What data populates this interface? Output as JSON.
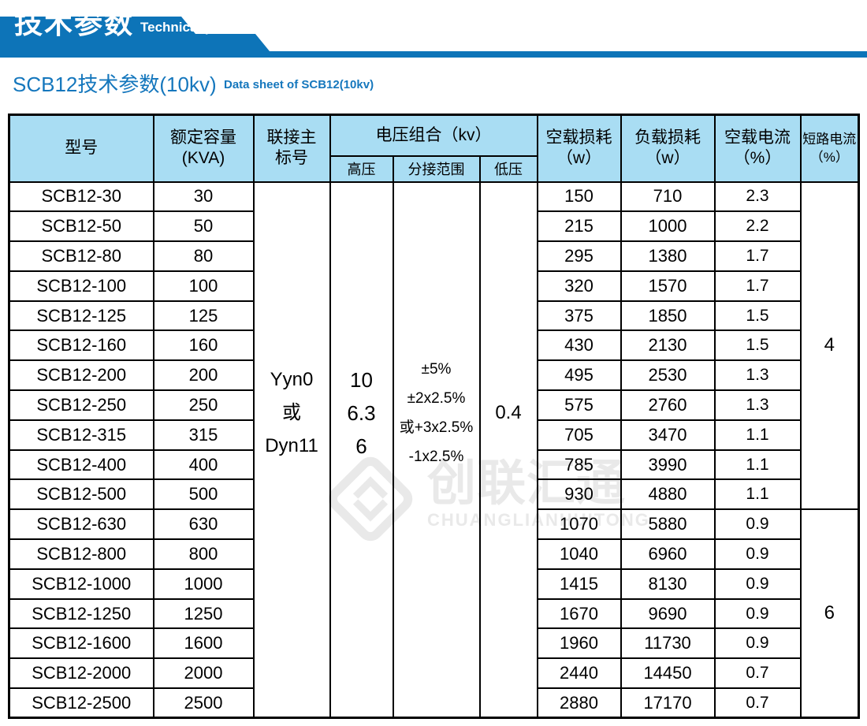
{
  "banner": {
    "title_cn": "技术参数",
    "title_en": "Technical parameter"
  },
  "section": {
    "title_cn": "SCB12技术参数(10kv)",
    "title_en": "Data sheet of SCB12(10kv)"
  },
  "watermark": {
    "logo_icon": "diamond-logo-icon",
    "text_cn": "创联汇通",
    "text_en": "CHUANGLIANHUITONG"
  },
  "colors": {
    "accent_blue": "#0d74b8",
    "title_blue": "#1577bd",
    "header_bg": "#a9ddf3",
    "border_black": "#000000",
    "watermark_gray": "#e9e9e9"
  },
  "table": {
    "headers": {
      "model": "型号",
      "capacity": [
        "额定容量",
        "(KVA)"
      ],
      "connection": [
        "联接主",
        "标号"
      ],
      "voltage_combo": "电压组合（kv）",
      "high_voltage": "高压",
      "tap_range": "分接范围",
      "low_voltage": "低压",
      "no_load_loss": [
        "空载损耗",
        "（w）"
      ],
      "load_loss": [
        "负载损耗",
        "（w）"
      ],
      "no_load_current": [
        "空载电流",
        "（%）"
      ],
      "short_circuit": [
        "短路电流",
        "（%）"
      ]
    },
    "merged": {
      "connection": [
        "Yyn0",
        "或",
        "Dyn11"
      ],
      "high_voltage": [
        "10",
        "6.3",
        "6"
      ],
      "tap_range": [
        "±5%",
        "±2x2.5%",
        "或+3x2.5%",
        "-1x2.5%"
      ],
      "low_voltage": "0.4",
      "short_circuit_group1": "4",
      "short_circuit_group2": "6"
    },
    "rows": [
      {
        "model": "SCB12-30",
        "capacity": "30",
        "no_load_loss": "150",
        "load_loss": "710",
        "no_load_current": "2.3"
      },
      {
        "model": "SCB12-50",
        "capacity": "50",
        "no_load_loss": "215",
        "load_loss": "1000",
        "no_load_current": "2.2"
      },
      {
        "model": "SCB12-80",
        "capacity": "80",
        "no_load_loss": "295",
        "load_loss": "1380",
        "no_load_current": "1.7"
      },
      {
        "model": "SCB12-100",
        "capacity": "100",
        "no_load_loss": "320",
        "load_loss": "1570",
        "no_load_current": "1.7"
      },
      {
        "model": "SCB12-125",
        "capacity": "125",
        "no_load_loss": "375",
        "load_loss": "1850",
        "no_load_current": "1.5"
      },
      {
        "model": "SCB12-160",
        "capacity": "160",
        "no_load_loss": "430",
        "load_loss": "2130",
        "no_load_current": "1.5"
      },
      {
        "model": "SCB12-200",
        "capacity": "200",
        "no_load_loss": "495",
        "load_loss": "2530",
        "no_load_current": "1.3"
      },
      {
        "model": "SCB12-250",
        "capacity": "250",
        "no_load_loss": "575",
        "load_loss": "2760",
        "no_load_current": "1.3"
      },
      {
        "model": "SCB12-315",
        "capacity": "315",
        "no_load_loss": "705",
        "load_loss": "3470",
        "no_load_current": "1.1"
      },
      {
        "model": "SCB12-400",
        "capacity": "400",
        "no_load_loss": "785",
        "load_loss": "3990",
        "no_load_current": "1.1"
      },
      {
        "model": "SCB12-500",
        "capacity": "500",
        "no_load_loss": "930",
        "load_loss": "4880",
        "no_load_current": "1.1"
      },
      {
        "model": "SCB12-630",
        "capacity": "630",
        "no_load_loss": "1070",
        "load_loss": "5880",
        "no_load_current": "0.9"
      },
      {
        "model": "SCB12-800",
        "capacity": "800",
        "no_load_loss": "1040",
        "load_loss": "6960",
        "no_load_current": "0.9"
      },
      {
        "model": "SCB12-1000",
        "capacity": "1000",
        "no_load_loss": "1415",
        "load_loss": "8130",
        "no_load_current": "0.9"
      },
      {
        "model": "SCB12-1250",
        "capacity": "1250",
        "no_load_loss": "1670",
        "load_loss": "9690",
        "no_load_current": "0.9"
      },
      {
        "model": "SCB12-1600",
        "capacity": "1600",
        "no_load_loss": "1960",
        "load_loss": "11730",
        "no_load_current": "0.9"
      },
      {
        "model": "SCB12-2000",
        "capacity": "2000",
        "no_load_loss": "2440",
        "load_loss": "14450",
        "no_load_current": "0.7"
      },
      {
        "model": "SCB12-2500",
        "capacity": "2500",
        "no_load_loss": "2880",
        "load_loss": "17170",
        "no_load_current": "0.7"
      }
    ]
  }
}
